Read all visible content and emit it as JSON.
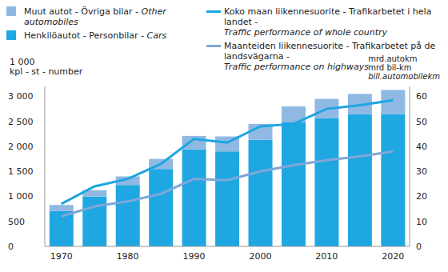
{
  "chart_data": {
    "type": "bar",
    "stacked": true,
    "grid": false,
    "categories": [
      "1970",
      null,
      "1980",
      null,
      "1990",
      null,
      "2000",
      null,
      "2010",
      null,
      "2020"
    ],
    "series": [
      {
        "name": "Henkilöautot - Personbilar - Cars",
        "type": "bar",
        "color": "#1fa7e2",
        "values": [
          710,
          995,
          1230,
          1550,
          1940,
          1900,
          2130,
          2480,
          2570,
          2650,
          2650
        ]
      },
      {
        "name": "Muut autot - Övriga bilar - Other automobiles",
        "type": "bar",
        "color": "#8fb9e3",
        "values": [
          120,
          130,
          170,
          200,
          270,
          300,
          320,
          320,
          380,
          400,
          480
        ]
      },
      {
        "name": "Koko maan liikennesuorite - Trafikarbetet i hela landet - Traffic performance of whole country",
        "type": "line",
        "axis": "y2",
        "color": "#1da5e2",
        "values": [
          17,
          24,
          27,
          33,
          43,
          41.5,
          48,
          49,
          55,
          56.5,
          58.5
        ]
      },
      {
        "name": "Maanteiden liikennesuorite - Trafikarbetet på de landsvägarna - Traffic performance on highways",
        "type": "line",
        "axis": "y2",
        "color": "#7fa7d7",
        "values": [
          12,
          16,
          18,
          21,
          27,
          26.5,
          30,
          32.5,
          34.5,
          36,
          38
        ]
      }
    ],
    "ylim": [
      0,
      3200
    ],
    "yticks": [
      0,
      500,
      {
        "value": 1000,
        "label": "1 000"
      },
      {
        "value": 1500,
        "label": "1 500"
      },
      {
        "value": 2000,
        "label": "2 000"
      },
      {
        "value": 2500,
        "label": "2 500"
      },
      {
        "value": 3000,
        "label": "3 000"
      }
    ],
    "y2lim": [
      0,
      64
    ],
    "y2ticks": [
      0,
      10,
      20,
      30,
      40,
      50,
      60
    ],
    "ylabel": [
      "1 000",
      "kpl - st - number"
    ],
    "y2label": [
      "mrd.autokm",
      "mrd bil-km",
      "bill.automobilekm"
    ]
  }
}
